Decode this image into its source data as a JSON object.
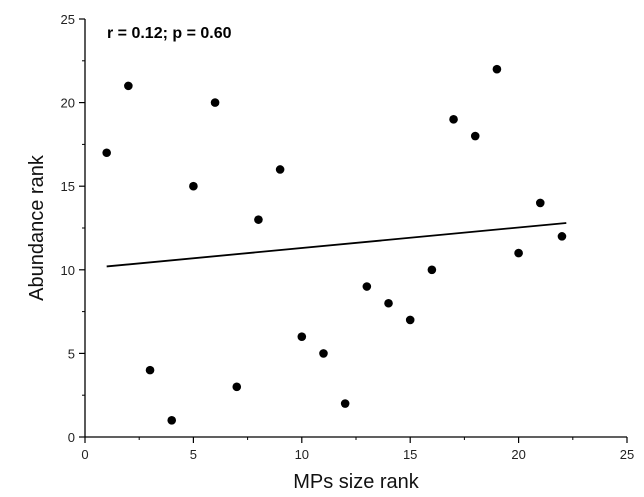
{
  "chart_data": {
    "type": "scatter",
    "title": "",
    "annotation": "r = 0.12; p = 0.60",
    "xlabel": "MPs size rank",
    "ylabel": "Abundance rank",
    "xlim": [
      0,
      25
    ],
    "ylim": [
      0,
      25
    ],
    "xticks": [
      "0",
      "5",
      "10",
      "15",
      "20",
      "25"
    ],
    "yticks": [
      "0",
      "5",
      "10",
      "15",
      "20",
      "25"
    ],
    "grid": false,
    "legend": "none",
    "point_color": "#000000",
    "line_color": "#000000",
    "points": [
      {
        "x": 1,
        "y": 17
      },
      {
        "x": 2,
        "y": 21
      },
      {
        "x": 3,
        "y": 4
      },
      {
        "x": 4,
        "y": 1
      },
      {
        "x": 5,
        "y": 15
      },
      {
        "x": 6,
        "y": 20
      },
      {
        "x": 7,
        "y": 3
      },
      {
        "x": 8,
        "y": 13
      },
      {
        "x": 9,
        "y": 16
      },
      {
        "x": 10,
        "y": 6
      },
      {
        "x": 11,
        "y": 5
      },
      {
        "x": 12,
        "y": 2
      },
      {
        "x": 13,
        "y": 9
      },
      {
        "x": 14,
        "y": 8
      },
      {
        "x": 15,
        "y": 7
      },
      {
        "x": 16,
        "y": 10
      },
      {
        "x": 17,
        "y": 19
      },
      {
        "x": 18,
        "y": 18
      },
      {
        "x": 19,
        "y": 22
      },
      {
        "x": 20,
        "y": 11
      },
      {
        "x": 21,
        "y": 14
      },
      {
        "x": 22,
        "y": 12
      }
    ],
    "trend_line": {
      "x": [
        1,
        22.2
      ],
      "y": [
        10.2,
        12.8
      ]
    }
  }
}
